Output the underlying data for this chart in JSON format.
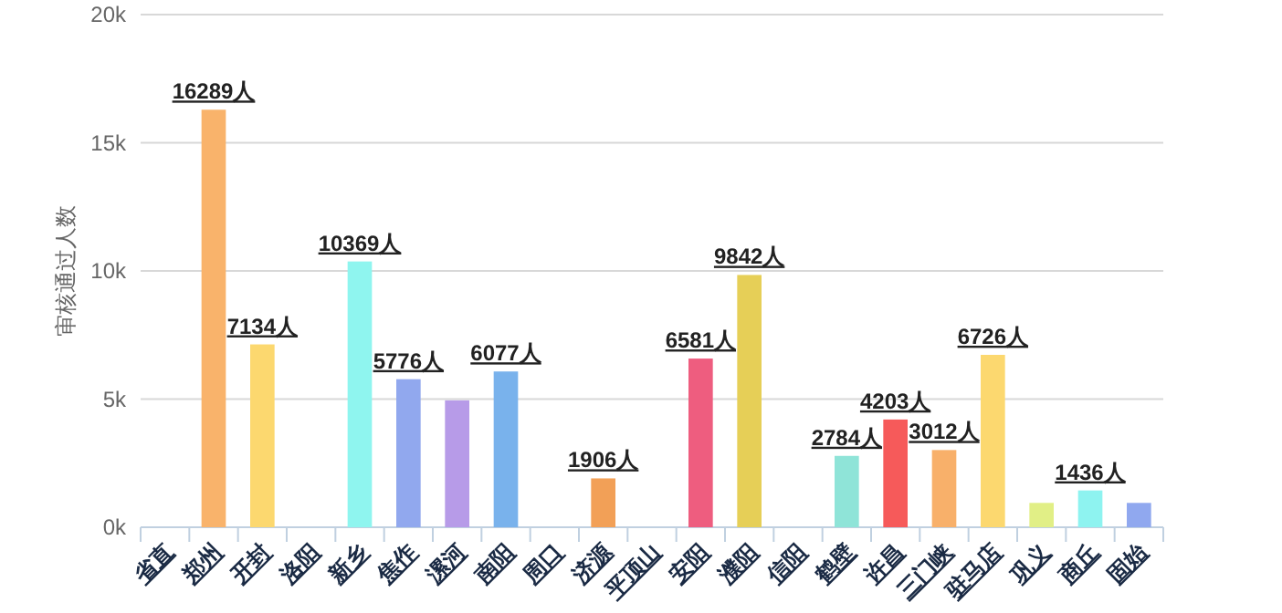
{
  "chart_data": {
    "type": "bar",
    "ylabel": "审核通过人数",
    "categories": [
      "省直",
      "郑州",
      "开封",
      "洛阳",
      "新乡",
      "焦作",
      "漯河",
      "南阳",
      "周口",
      "济源",
      "平顶山",
      "安阳",
      "濮阳",
      "信阳",
      "鹤壁",
      "许昌",
      "三门峡",
      "驻马店",
      "巩义",
      "商丘",
      "固始"
    ],
    "values": [
      0,
      16289,
      7134,
      0,
      10369,
      5776,
      4950,
      6077,
      0,
      1906,
      0,
      6581,
      9842,
      0,
      2784,
      4203,
      3012,
      6726,
      950,
      1436,
      950
    ],
    "value_labels": [
      null,
      "16289人",
      "7134人",
      null,
      "10369人",
      "5776人",
      null,
      "6077人",
      null,
      "1906人",
      null,
      "6581人",
      "9842人",
      null,
      "2784人",
      "4203人",
      "3012人",
      "6726人",
      null,
      "1436人",
      null
    ],
    "colors": [
      "#f9b36b",
      "#f9b36b",
      "#fcd86f",
      "#8ff5ef",
      "#8ff5ef",
      "#91a8ee",
      "#b79be8",
      "#79b2ec",
      "#f2a057",
      "#f2a057",
      "#ee5d7f",
      "#ee5d7f",
      "#e6cf57",
      "#8fe4d8",
      "#8fe4d8",
      "#f65a5a",
      "#f8b06a",
      "#fcd86f",
      "#e1ef86",
      "#8ef3f0",
      "#90a8ef"
    ],
    "ylim": [
      0,
      20000
    ],
    "yticks": [
      {
        "value": 0,
        "label": "0k"
      },
      {
        "value": 5000,
        "label": "5k"
      },
      {
        "value": 10000,
        "label": "10k"
      },
      {
        "value": 15000,
        "label": "15k"
      },
      {
        "value": 20000,
        "label": "20k"
      }
    ],
    "grid": "y"
  }
}
